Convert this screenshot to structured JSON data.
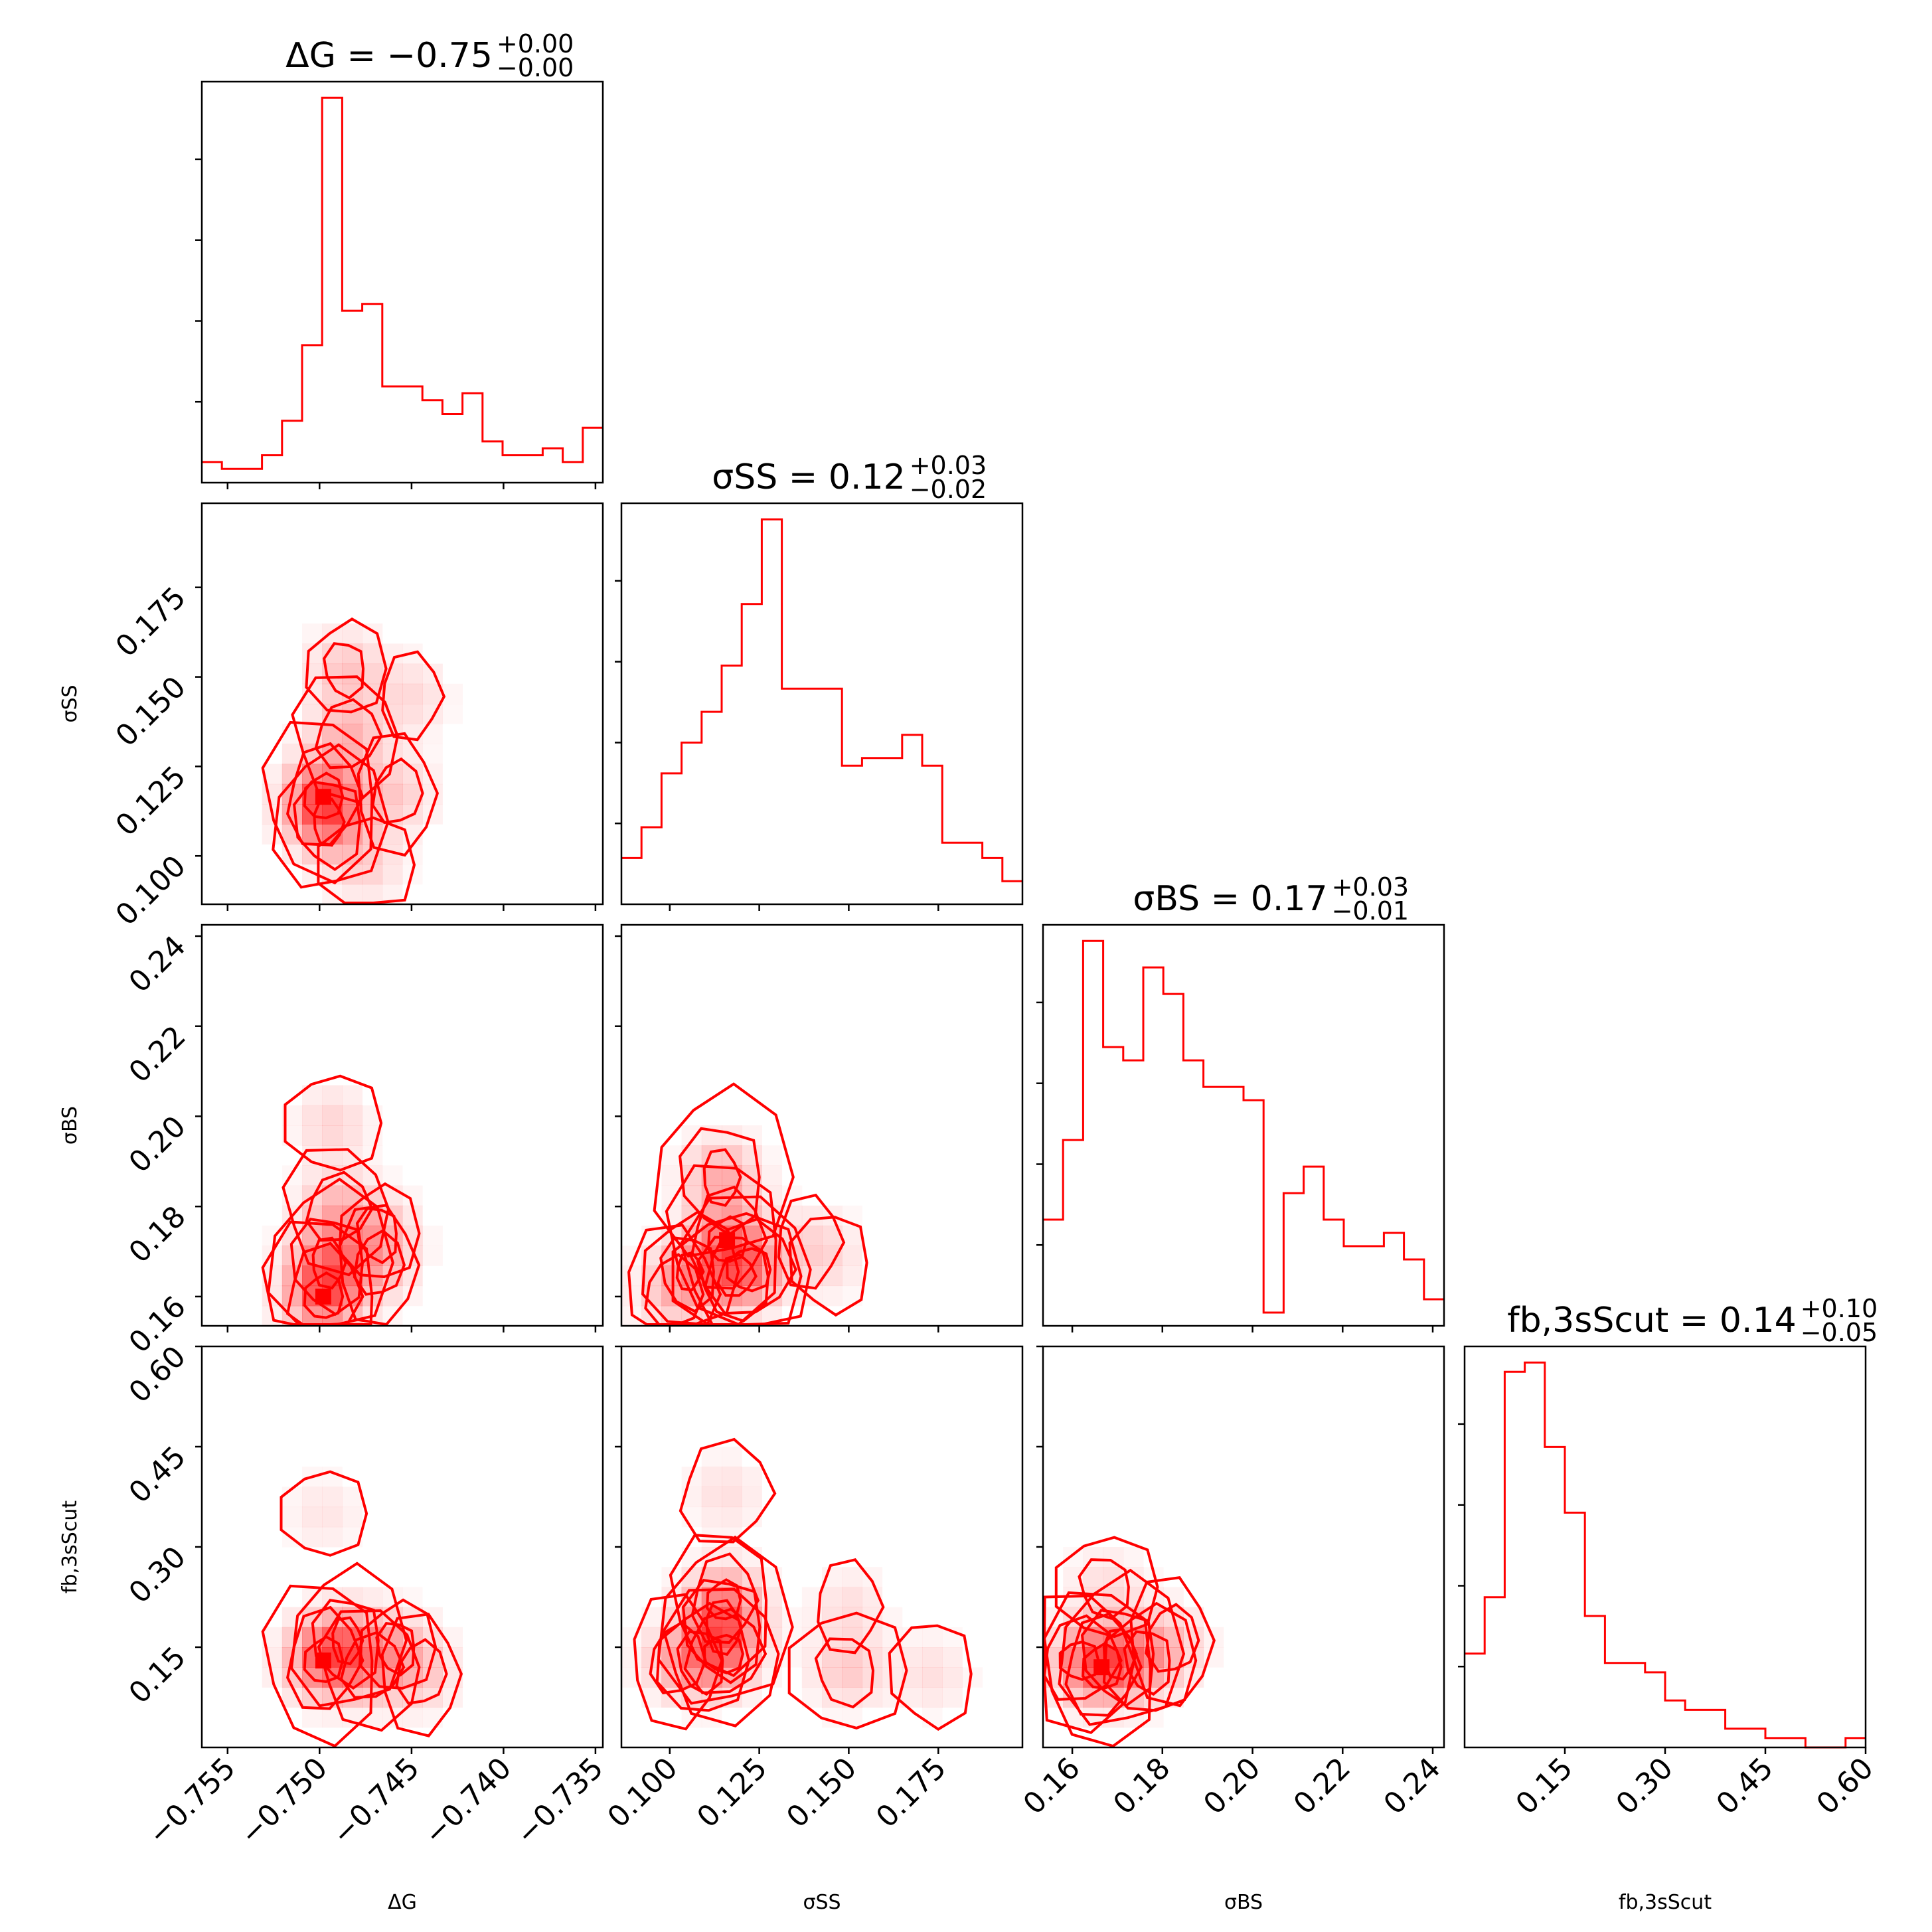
{
  "chart_data": {
    "type": "corner",
    "color": "#ff0000",
    "parameters": [
      {
        "key": "dG",
        "label": "ΔG",
        "range": [
          -0.7564,
          -0.7346
        ],
        "ticks": [
          -0.755,
          -0.75,
          -0.745,
          -0.74,
          -0.735
        ],
        "tick_labels": [
          "−0.755",
          "−0.750",
          "−0.745",
          "−0.740",
          "−0.735"
        ]
      },
      {
        "key": "sSS",
        "label": "σSS",
        "range": [
          0.0865,
          0.1985
        ],
        "ticks": [
          0.1,
          0.125,
          0.15,
          0.175
        ],
        "tick_labels": [
          "0.100",
          "0.125",
          "0.150",
          "0.175"
        ]
      },
      {
        "key": "sBS",
        "label": "σBS",
        "range": [
          0.1535,
          0.2425
        ],
        "ticks": [
          0.16,
          0.18,
          0.2,
          0.22,
          0.24
        ],
        "tick_labels": [
          "0.16",
          "0.18",
          "0.20",
          "0.22",
          "0.24"
        ]
      },
      {
        "key": "fb",
        "label": "fb,3sScut",
        "range": [
          0.0,
          0.6
        ],
        "ticks": [
          0.15,
          0.3,
          0.45,
          0.6
        ],
        "tick_labels": [
          "0.15",
          "0.30",
          "0.45",
          "0.60"
        ]
      }
    ],
    "titles": [
      {
        "prefix": "ΔG",
        "value": " = −0.75",
        "plus": "+0.00",
        "minus": "−0.00"
      },
      {
        "prefix": "σSS",
        "value": " = 0.12",
        "plus": "+0.03",
        "minus": "−0.02"
      },
      {
        "prefix": "σBS",
        "value": " = 0.17",
        "plus": "+0.03",
        "minus": "−0.01"
      },
      {
        "prefix": "fb,3sScut",
        "value": " = 0.14",
        "plus": "+0.10",
        "minus": "−0.05"
      }
    ],
    "histograms": [
      {
        "param": "dG",
        "counts": [
          3,
          2,
          2,
          4,
          9,
          20,
          56,
          25,
          26,
          14,
          14,
          12,
          10,
          13,
          6,
          4,
          4,
          5,
          3,
          8
        ]
      },
      {
        "param": "sSS",
        "counts": [
          6,
          10,
          17,
          21,
          25,
          31,
          39,
          50,
          28,
          28,
          28,
          18,
          19,
          19,
          22,
          18,
          8,
          8,
          6,
          3
        ]
      },
      {
        "param": "sBS",
        "counts": [
          8,
          14,
          29,
          21,
          20,
          27,
          25,
          20,
          18,
          18,
          17,
          1,
          10,
          12,
          8,
          6,
          6,
          7,
          5,
          2
        ]
      },
      {
        "param": "fb",
        "counts": [
          10,
          16,
          40,
          41,
          32,
          25,
          14,
          9,
          9,
          8,
          5,
          4,
          4,
          2,
          2,
          1,
          1,
          0,
          0,
          1
        ]
      }
    ],
    "density_peaks": [
      {
        "x": "dG",
        "y": "sSS",
        "peaks": [
          [
            -0.7498,
            0.1165,
            1.0
          ],
          [
            -0.7495,
            0.1095,
            0.6
          ],
          [
            -0.7485,
            0.1335,
            0.5
          ],
          [
            -0.7486,
            0.1523,
            0.4
          ],
          [
            -0.7458,
            0.1175,
            0.35
          ],
          [
            -0.7475,
            0.0975,
            0.3
          ],
          [
            -0.745,
            0.1445,
            0.25
          ]
        ]
      },
      {
        "x": "dG",
        "y": "sBS",
        "peaks": [
          [
            -0.7498,
            0.16,
            1.0
          ],
          [
            -0.7495,
            0.1675,
            0.7
          ],
          [
            -0.749,
            0.1795,
            0.5
          ],
          [
            -0.7468,
            0.174,
            0.4
          ],
          [
            -0.7468,
            0.167,
            0.35
          ],
          [
            -0.7493,
            0.1985,
            0.3
          ]
        ]
      },
      {
        "x": "dG",
        "y": "fb",
        "peaks": [
          [
            -0.7498,
            0.13,
            1.0
          ],
          [
            -0.7485,
            0.16,
            0.6
          ],
          [
            -0.7472,
            0.12,
            0.45
          ],
          [
            -0.7458,
            0.15,
            0.35
          ],
          [
            -0.7445,
            0.11,
            0.35
          ],
          [
            -0.7498,
            0.35,
            0.2
          ]
        ]
      },
      {
        "x": "sSS",
        "y": "sBS",
        "peaks": [
          [
            0.116,
            0.1725,
            1.0
          ],
          [
            0.1145,
            0.1865,
            0.85
          ],
          [
            0.122,
            0.166,
            0.75
          ],
          [
            0.1055,
            0.1655,
            0.6
          ],
          [
            0.101,
            0.1605,
            0.5
          ],
          [
            0.1185,
            0.1645,
            0.6
          ],
          [
            0.139,
            0.172,
            0.3
          ],
          [
            0.1445,
            0.1675,
            0.25
          ]
        ]
      },
      {
        "x": "sSS",
        "y": "fb",
        "peaks": [
          [
            0.115,
            0.22,
            0.8
          ],
          [
            0.115,
            0.18,
            0.8
          ],
          [
            0.115,
            0.14,
            0.6
          ],
          [
            0.109,
            0.13,
            0.55
          ],
          [
            0.102,
            0.13,
            0.45
          ],
          [
            0.1495,
            0.115,
            0.5
          ],
          [
            0.15,
            0.21,
            0.3
          ],
          [
            0.173,
            0.11,
            0.3
          ],
          [
            0.1155,
            0.38,
            0.3
          ]
        ]
      },
      {
        "x": "sBS",
        "y": "fb",
        "peaks": [
          [
            0.1665,
            0.12,
            1.0
          ],
          [
            0.1705,
            0.14,
            0.7
          ],
          [
            0.1615,
            0.13,
            0.6
          ],
          [
            0.177,
            0.13,
            0.55
          ],
          [
            0.182,
            0.16,
            0.4
          ],
          [
            0.1675,
            0.24,
            0.35
          ]
        ]
      }
    ]
  }
}
